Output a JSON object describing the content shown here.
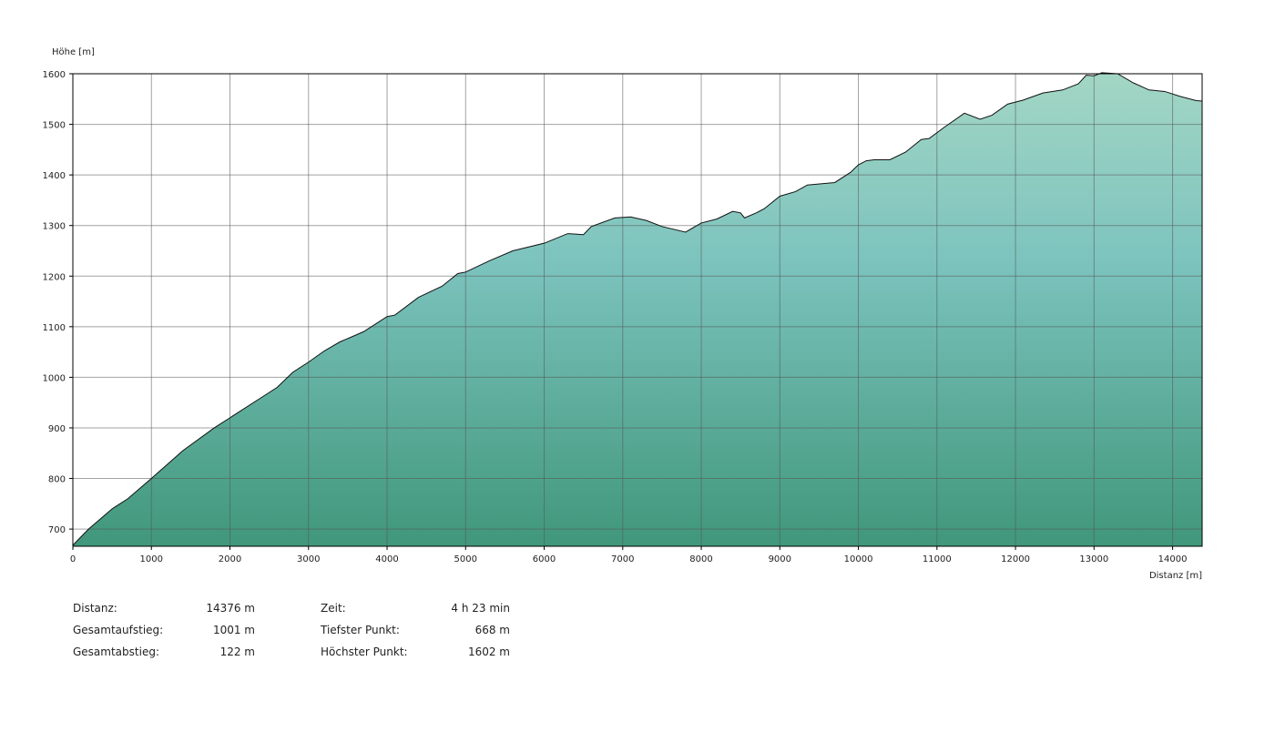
{
  "chart_data": {
    "type": "area",
    "y_label": "Höhe [m]",
    "x_label": "Distanz [m]",
    "x": [
      0,
      200,
      500,
      700,
      1000,
      1400,
      1800,
      2000,
      2400,
      2600,
      2800,
      3000,
      3200,
      3400,
      3700,
      4000,
      4100,
      4400,
      4700,
      4900,
      5000,
      5300,
      5600,
      6000,
      6300,
      6500,
      6600,
      6900,
      7100,
      7300,
      7500,
      7800,
      8000,
      8200,
      8400,
      8500,
      8550,
      8700,
      8800,
      9000,
      9200,
      9350,
      9700,
      9900,
      10000,
      10100,
      10200,
      10400,
      10600,
      10800,
      10900,
      11100,
      11350,
      11550,
      11700,
      11900,
      12100,
      12350,
      12600,
      12800,
      12900,
      13000,
      13100,
      13300,
      13500,
      13700,
      13900,
      14100,
      14300,
      14376
    ],
    "values": [
      668,
      700,
      740,
      760,
      800,
      855,
      900,
      920,
      960,
      980,
      1010,
      1030,
      1052,
      1070,
      1090,
      1120,
      1123,
      1158,
      1180,
      1205,
      1208,
      1230,
      1250,
      1265,
      1284,
      1282,
      1298,
      1315,
      1317,
      1310,
      1298,
      1287,
      1305,
      1313,
      1328,
      1325,
      1315,
      1325,
      1333,
      1358,
      1367,
      1380,
      1385,
      1405,
      1420,
      1428,
      1430,
      1430,
      1445,
      1470,
      1472,
      1495,
      1522,
      1510,
      1518,
      1540,
      1548,
      1562,
      1568,
      1580,
      1597,
      1596,
      1602,
      1600,
      1582,
      1568,
      1565,
      1555,
      1547,
      1546
    ],
    "xlim": [
      0,
      14376
    ],
    "ylim": [
      666,
      1600
    ],
    "xticks": [
      0,
      1000,
      2000,
      3000,
      4000,
      5000,
      6000,
      7000,
      8000,
      9000,
      10000,
      11000,
      12000,
      13000,
      14000
    ],
    "yticks": [
      700,
      800,
      900,
      1000,
      1100,
      1200,
      1300,
      1400,
      1500,
      1600
    ],
    "grid": true
  },
  "stats": {
    "rows": [
      [
        "Distanz:",
        "14376 m",
        "Zeit:",
        "4 h 23 min"
      ],
      [
        "Gesamtaufstieg:",
        "1001 m",
        "Tiefster Punkt:",
        "668 m"
      ],
      [
        "Gesamtabstieg:",
        "122 m",
        "Höchster Punkt:",
        "1602 m"
      ]
    ]
  }
}
